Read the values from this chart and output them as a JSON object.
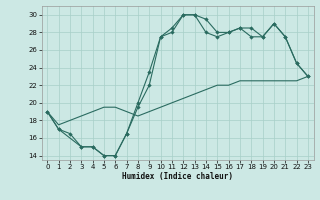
{
  "xlabel": "Humidex (Indice chaleur)",
  "bg_color": "#cce8e4",
  "grid_color": "#a8cfc8",
  "line_color": "#2a6b60",
  "xlim": [
    -0.5,
    23.5
  ],
  "ylim": [
    13.5,
    31
  ],
  "yticks": [
    14,
    16,
    18,
    20,
    22,
    24,
    26,
    28,
    30
  ],
  "xticks": [
    0,
    1,
    2,
    3,
    4,
    5,
    6,
    7,
    8,
    9,
    10,
    11,
    12,
    13,
    14,
    15,
    16,
    17,
    18,
    19,
    20,
    21,
    22,
    23
  ],
  "line1_x": [
    0,
    1,
    2,
    3,
    4,
    5,
    6,
    7,
    8,
    9,
    10,
    11,
    12,
    13,
    14,
    15,
    16,
    17,
    18,
    19,
    20,
    21,
    22,
    23
  ],
  "line1_y": [
    19,
    17,
    16.5,
    15,
    15,
    14,
    14,
    16.5,
    19.5,
    22,
    27.5,
    28,
    30,
    30,
    29.5,
    28,
    28,
    28.5,
    28.5,
    27.5,
    29,
    27.5,
    24.5,
    23
  ],
  "line2_x": [
    0,
    1,
    3,
    4,
    5,
    6,
    7,
    8,
    9,
    10,
    11,
    12,
    13,
    14,
    15,
    16,
    17,
    18,
    19,
    20,
    21,
    22,
    23
  ],
  "line2_y": [
    19,
    17,
    15,
    15,
    14,
    14,
    16.5,
    20,
    23.5,
    27.5,
    28.5,
    30,
    30,
    28,
    27.5,
    28,
    28.5,
    27.5,
    27.5,
    29,
    27.5,
    24.5,
    23
  ],
  "line3_x": [
    0,
    1,
    2,
    3,
    4,
    5,
    6,
    7,
    8,
    9,
    10,
    11,
    12,
    13,
    14,
    15,
    16,
    17,
    18,
    19,
    20,
    21,
    22,
    23
  ],
  "line3_y": [
    19,
    17.5,
    18,
    18.5,
    19,
    19.5,
    19.5,
    19,
    18.5,
    19,
    19.5,
    20,
    20.5,
    21,
    21.5,
    22,
    22,
    22.5,
    22.5,
    22.5,
    22.5,
    22.5,
    22.5,
    23
  ]
}
